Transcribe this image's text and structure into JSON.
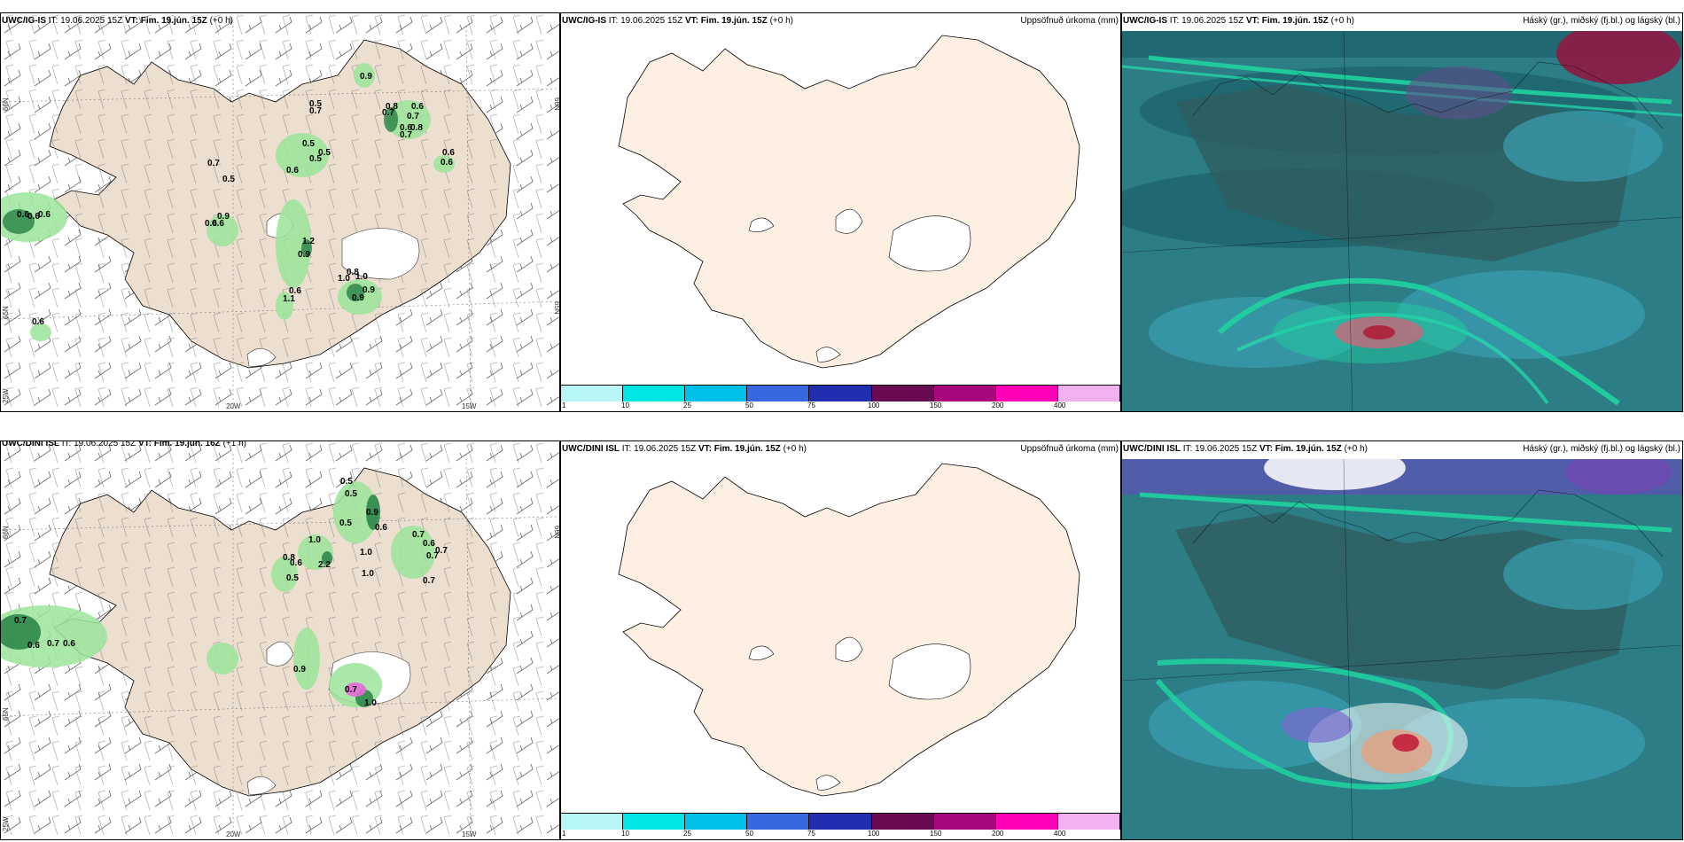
{
  "rows": [
    {
      "model": "UWC/IG-IS",
      "it_label": "IT:",
      "it_value": "19.06.2025 15Z",
      "vt_label": "VT:",
      "vt_value": "Fim. 19.jún. 15Z",
      "lead": "(+0 h)",
      "left_model": "UWC/IG-IS",
      "left_it": "19.06.2025 15Z",
      "left_vt": "Fim. 19.jún. 15Z",
      "left_lead": "(+0 h)",
      "precip_labels": [
        "0.9",
        "0.5",
        "0.7",
        "0.8",
        "0.6",
        "0.7",
        "0.7",
        "0.6",
        "0.8",
        "0.7",
        "0.6",
        "0.5",
        "0.5",
        "0.5",
        "0.6",
        "0.7",
        "0.6",
        "0.5",
        "0.6",
        "0.6",
        "0.6",
        "0.6",
        "0.9",
        "0.6",
        "1.2",
        "0.9",
        "0.8",
        "1.0",
        "1.0",
        "0.6",
        "0.9",
        "0.9",
        "1.1",
        "0.6"
      ]
    },
    {
      "model": "UWC/DINI ISL",
      "it_label": "IT:",
      "it_value": "19.06.2025 15Z",
      "vt_label": "VT:",
      "vt_value": "Fim. 19.jún. 15Z",
      "lead": "(+0 h)",
      "left_model": "UWC/DINI ISL",
      "left_it": "19.06.2025 15Z",
      "left_vt": "Fim. 19.jún. 16Z",
      "left_lead": "(+1 h)",
      "precip_labels": [
        "0.5",
        "0.5",
        "0.9",
        "0.5",
        "0.6",
        "0.7",
        "0.6",
        "0.7",
        "0.7",
        "1.0",
        "0.8",
        "0.6",
        "2.2",
        "1.0",
        "1.0",
        "0.5",
        "0.7",
        "0.7",
        "0.6",
        "0.6",
        "0.9",
        "0.7",
        "0.7",
        "1.0"
      ]
    }
  ],
  "precip_title": "Uppsöfnuð úrkoma (mm)",
  "cloud_title": "Háský (gr.), miðský (fj.bl.) og lágský (bl.)",
  "colorbar": {
    "ticks": [
      "1",
      "10",
      "25",
      "50",
      "75",
      "100",
      "150",
      "200",
      "400"
    ],
    "colors": [
      "#b8f5f5",
      "#00e5e5",
      "#00bfe8",
      "#3868e0",
      "#1f2fb0",
      "#6a0a52",
      "#a8087e",
      "#ff00b8",
      "#f3b0f0"
    ]
  },
  "axis_labels": {
    "lat66": "66N",
    "lat65": "65N",
    "lat64": "64N",
    "lon20": "20W",
    "lon15": "15W",
    "lon25": "25W"
  },
  "colors": {
    "land": "#ecdfcf",
    "land_precip_map": "#fdf0e2",
    "precip_green": "#9be59b",
    "precip_dark": "#1e7a3e",
    "ocean_teal": "#2c7d86",
    "cloud_green": "#1fd3a0"
  }
}
